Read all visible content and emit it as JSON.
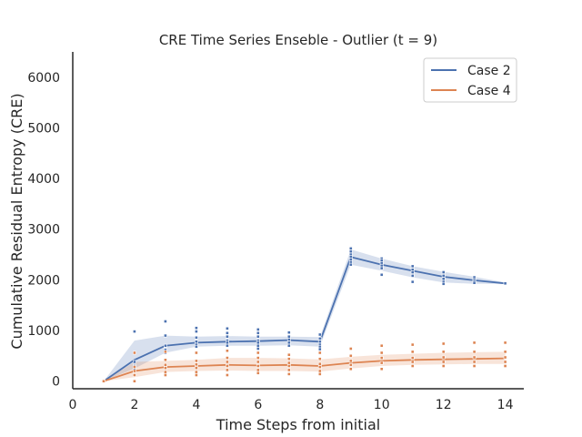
{
  "chart_data": {
    "type": "line",
    "title": "CRE Time Series Enseble - Outlier (t = 9)",
    "xlabel": "Time Steps from initial",
    "ylabel": "Cumulative Residual Entropy (CRE)",
    "xlim": [
      0,
      14.6
    ],
    "ylim": [
      -150,
      6500
    ],
    "xticks": [
      0,
      2,
      4,
      6,
      8,
      10,
      12,
      14
    ],
    "yticks": [
      0,
      1000,
      2000,
      3000,
      4000,
      5000,
      6000
    ],
    "grid": false,
    "legend_position": "top-right",
    "series": [
      {
        "name": "Case 2",
        "color": "#4c72b0",
        "x": [
          1,
          2,
          3,
          4,
          5,
          6,
          7,
          8,
          9,
          10,
          11,
          12,
          13,
          14
        ],
        "mean": [
          0,
          420,
          700,
          760,
          780,
          790,
          810,
          780,
          2450,
          2300,
          2180,
          2060,
          1990,
          1930
        ],
        "ci_low": [
          0,
          250,
          560,
          680,
          700,
          700,
          710,
          680,
          2300,
          2180,
          2050,
          1950,
          1920,
          1920
        ],
        "ci_high": [
          0,
          800,
          900,
          880,
          890,
          880,
          880,
          870,
          2600,
          2420,
          2270,
          2160,
          2060,
          1950
        ],
        "points": [
          [
            1,
            0
          ],
          [
            2,
            980
          ],
          [
            2,
            380
          ],
          [
            2,
            300
          ],
          [
            2,
            250
          ],
          [
            3,
            1180
          ],
          [
            3,
            900
          ],
          [
            3,
            700
          ],
          [
            3,
            620
          ],
          [
            3,
            560
          ],
          [
            4,
            1050
          ],
          [
            4,
            980
          ],
          [
            4,
            860
          ],
          [
            4,
            780
          ],
          [
            4,
            720
          ],
          [
            4,
            680
          ],
          [
            5,
            1040
          ],
          [
            5,
            950
          ],
          [
            5,
            880
          ],
          [
            5,
            800
          ],
          [
            5,
            760
          ],
          [
            5,
            700
          ],
          [
            6,
            1020
          ],
          [
            6,
            950
          ],
          [
            6,
            880
          ],
          [
            6,
            800
          ],
          [
            6,
            760
          ],
          [
            6,
            700
          ],
          [
            6,
            640
          ],
          [
            7,
            960
          ],
          [
            7,
            880
          ],
          [
            7,
            820
          ],
          [
            7,
            760
          ],
          [
            7,
            700
          ],
          [
            8,
            920
          ],
          [
            8,
            840
          ],
          [
            8,
            780
          ],
          [
            8,
            720
          ],
          [
            8,
            680
          ],
          [
            8,
            630
          ],
          [
            9,
            2620
          ],
          [
            9,
            2560
          ],
          [
            9,
            2500
          ],
          [
            9,
            2450
          ],
          [
            9,
            2400
          ],
          [
            9,
            2350
          ],
          [
            9,
            2300
          ],
          [
            10,
            2420
          ],
          [
            10,
            2380
          ],
          [
            10,
            2330
          ],
          [
            10,
            2280
          ],
          [
            10,
            2230
          ],
          [
            10,
            2100
          ],
          [
            11,
            2270
          ],
          [
            11,
            2200
          ],
          [
            11,
            2150
          ],
          [
            11,
            2080
          ],
          [
            11,
            1960
          ],
          [
            12,
            2150
          ],
          [
            12,
            2080
          ],
          [
            12,
            2020
          ],
          [
            12,
            1960
          ],
          [
            12,
            1920
          ],
          [
            13,
            2050
          ],
          [
            13,
            2000
          ],
          [
            13,
            1970
          ],
          [
            13,
            1940
          ],
          [
            14,
            1940
          ],
          [
            14,
            1930
          ]
        ]
      },
      {
        "name": "Case 4",
        "color": "#dd8452",
        "x": [
          1,
          2,
          3,
          4,
          5,
          6,
          7,
          8,
          9,
          10,
          11,
          12,
          13,
          14
        ],
        "mean": [
          0,
          200,
          280,
          300,
          320,
          310,
          320,
          300,
          360,
          400,
          420,
          430,
          440,
          450
        ],
        "ci_low": [
          0,
          80,
          180,
          200,
          210,
          200,
          200,
          190,
          250,
          300,
          320,
          330,
          340,
          340
        ],
        "ci_high": [
          0,
          380,
          400,
          420,
          460,
          460,
          450,
          430,
          480,
          520,
          540,
          560,
          570,
          580
        ],
        "points": [
          [
            1,
            0
          ],
          [
            2,
            560
          ],
          [
            2,
            280
          ],
          [
            2,
            200
          ],
          [
            2,
            120
          ],
          [
            2,
            0
          ],
          [
            3,
            580
          ],
          [
            3,
            420
          ],
          [
            3,
            320
          ],
          [
            3,
            260
          ],
          [
            3,
            180
          ],
          [
            3,
            120
          ],
          [
            4,
            560
          ],
          [
            4,
            400
          ],
          [
            4,
            330
          ],
          [
            4,
            260
          ],
          [
            4,
            180
          ],
          [
            4,
            120
          ],
          [
            5,
            600
          ],
          [
            5,
            460
          ],
          [
            5,
            380
          ],
          [
            5,
            300
          ],
          [
            5,
            220
          ],
          [
            5,
            120
          ],
          [
            6,
            560
          ],
          [
            6,
            460
          ],
          [
            6,
            380
          ],
          [
            6,
            300
          ],
          [
            6,
            220
          ],
          [
            6,
            160
          ],
          [
            7,
            520
          ],
          [
            7,
            440
          ],
          [
            7,
            360
          ],
          [
            7,
            300
          ],
          [
            7,
            220
          ],
          [
            7,
            140
          ],
          [
            8,
            560
          ],
          [
            8,
            440
          ],
          [
            8,
            340
          ],
          [
            8,
            280
          ],
          [
            8,
            200
          ],
          [
            8,
            140
          ],
          [
            9,
            640
          ],
          [
            9,
            500
          ],
          [
            9,
            400
          ],
          [
            9,
            320
          ],
          [
            9,
            240
          ],
          [
            10,
            700
          ],
          [
            10,
            560
          ],
          [
            10,
            460
          ],
          [
            10,
            360
          ],
          [
            10,
            240
          ],
          [
            11,
            720
          ],
          [
            11,
            580
          ],
          [
            11,
            460
          ],
          [
            11,
            380
          ],
          [
            11,
            300
          ],
          [
            12,
            740
          ],
          [
            12,
            580
          ],
          [
            12,
            470
          ],
          [
            12,
            380
          ],
          [
            12,
            300
          ],
          [
            13,
            760
          ],
          [
            13,
            580
          ],
          [
            13,
            470
          ],
          [
            13,
            380
          ],
          [
            13,
            300
          ],
          [
            14,
            760
          ],
          [
            14,
            580
          ],
          [
            14,
            470
          ],
          [
            14,
            380
          ],
          [
            14,
            300
          ]
        ]
      }
    ]
  }
}
